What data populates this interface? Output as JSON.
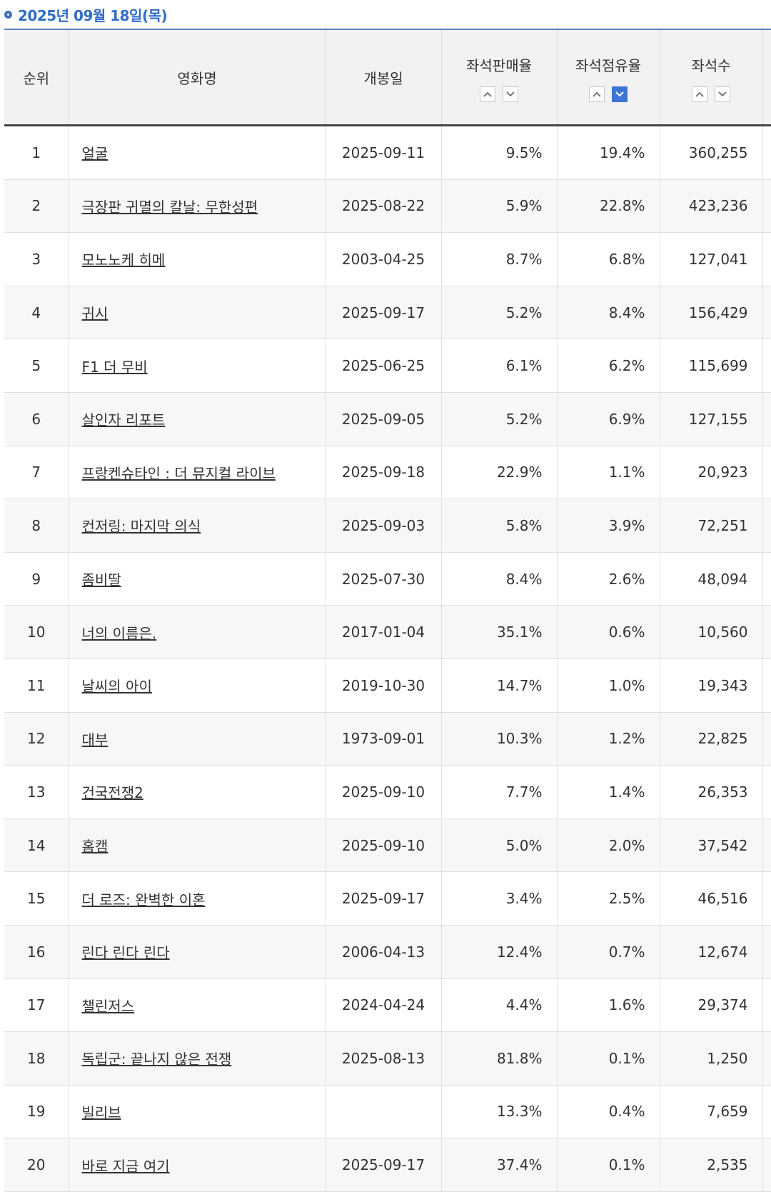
{
  "header": {
    "date": "2025년 09월 18일(목)"
  },
  "table": {
    "columns": {
      "rank": "순위",
      "title": "영화명",
      "release_date": "개봉일",
      "sales_rate": "좌석판매율",
      "occupancy_rate": "좌석점유율",
      "seats": "좌석수"
    },
    "sort": {
      "active_column": "occupancy_rate",
      "direction": "desc"
    },
    "rows": [
      {
        "rank": "1",
        "title": "얼굴",
        "release_date": "2025-09-11",
        "sales_rate": "9.5%",
        "occupancy_rate": "19.4%",
        "seats": "360,255"
      },
      {
        "rank": "2",
        "title": "극장판 귀멸의 칼날: 무한성편",
        "release_date": "2025-08-22",
        "sales_rate": "5.9%",
        "occupancy_rate": "22.8%",
        "seats": "423,236"
      },
      {
        "rank": "3",
        "title": "모노노케 히메",
        "release_date": "2003-04-25",
        "sales_rate": "8.7%",
        "occupancy_rate": "6.8%",
        "seats": "127,041"
      },
      {
        "rank": "4",
        "title": "귀시",
        "release_date": "2025-09-17",
        "sales_rate": "5.2%",
        "occupancy_rate": "8.4%",
        "seats": "156,429"
      },
      {
        "rank": "5",
        "title": "F1 더 무비",
        "release_date": "2025-06-25",
        "sales_rate": "6.1%",
        "occupancy_rate": "6.2%",
        "seats": "115,699"
      },
      {
        "rank": "6",
        "title": "살인자 리포트",
        "release_date": "2025-09-05",
        "sales_rate": "5.2%",
        "occupancy_rate": "6.9%",
        "seats": "127,155"
      },
      {
        "rank": "7",
        "title": "프랑켄슈타인 : 더 뮤지컬 라이브",
        "release_date": "2025-09-18",
        "sales_rate": "22.9%",
        "occupancy_rate": "1.1%",
        "seats": "20,923"
      },
      {
        "rank": "8",
        "title": "컨저링: 마지막 의식",
        "release_date": "2025-09-03",
        "sales_rate": "5.8%",
        "occupancy_rate": "3.9%",
        "seats": "72,251"
      },
      {
        "rank": "9",
        "title": "좀비딸",
        "release_date": "2025-07-30",
        "sales_rate": "8.4%",
        "occupancy_rate": "2.6%",
        "seats": "48,094"
      },
      {
        "rank": "10",
        "title": "너의 이름은.",
        "release_date": "2017-01-04",
        "sales_rate": "35.1%",
        "occupancy_rate": "0.6%",
        "seats": "10,560"
      },
      {
        "rank": "11",
        "title": "날씨의 아이",
        "release_date": "2019-10-30",
        "sales_rate": "14.7%",
        "occupancy_rate": "1.0%",
        "seats": "19,343"
      },
      {
        "rank": "12",
        "title": "대부",
        "release_date": "1973-09-01",
        "sales_rate": "10.3%",
        "occupancy_rate": "1.2%",
        "seats": "22,825"
      },
      {
        "rank": "13",
        "title": "건국전쟁2",
        "release_date": "2025-09-10",
        "sales_rate": "7.7%",
        "occupancy_rate": "1.4%",
        "seats": "26,353"
      },
      {
        "rank": "14",
        "title": "홈캠",
        "release_date": "2025-09-10",
        "sales_rate": "5.0%",
        "occupancy_rate": "2.0%",
        "seats": "37,542"
      },
      {
        "rank": "15",
        "title": "더 로즈: 완벽한 이혼",
        "release_date": "2025-09-17",
        "sales_rate": "3.4%",
        "occupancy_rate": "2.5%",
        "seats": "46,516"
      },
      {
        "rank": "16",
        "title": "린다 린다 린다",
        "release_date": "2006-04-13",
        "sales_rate": "12.4%",
        "occupancy_rate": "0.7%",
        "seats": "12,674"
      },
      {
        "rank": "17",
        "title": "챌린저스",
        "release_date": "2024-04-24",
        "sales_rate": "4.4%",
        "occupancy_rate": "1.6%",
        "seats": "29,374"
      },
      {
        "rank": "18",
        "title": "독립군: 끝나지 않은 전쟁",
        "release_date": "2025-08-13",
        "sales_rate": "81.8%",
        "occupancy_rate": "0.1%",
        "seats": "1,250"
      },
      {
        "rank": "19",
        "title": "빌리브",
        "release_date": "",
        "sales_rate": "13.3%",
        "occupancy_rate": "0.4%",
        "seats": "7,659"
      },
      {
        "rank": "20",
        "title": "바로 지금 여기",
        "release_date": "2025-09-17",
        "sales_rate": "37.4%",
        "occupancy_rate": "0.1%",
        "seats": "2,535"
      }
    ]
  },
  "colors": {
    "accent": "#2f6cc8",
    "active_sort": "#3d74d6",
    "header_bg": "#f2f2f2"
  }
}
